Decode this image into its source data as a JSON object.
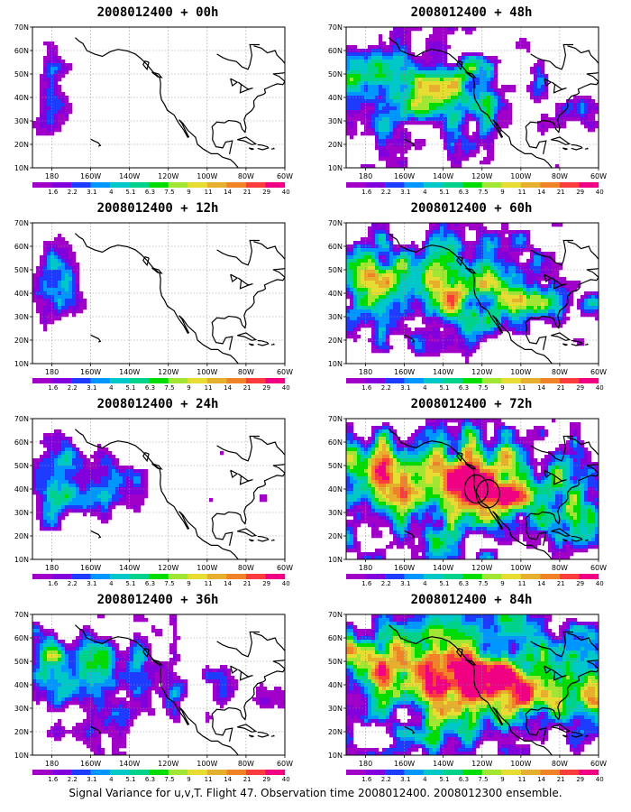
{
  "caption": "Signal Variance for u,v,T. Flight 47. Observation time 2008012400. 2008012300 ensemble.",
  "chart_data": [
    {
      "type": "heatmap",
      "title": "2008012400 + 00h",
      "lead_hours": 0,
      "intensity": 0.15,
      "rings": []
    },
    {
      "type": "heatmap",
      "title": "2008012400 + 12h",
      "lead_hours": 12,
      "intensity": 0.25,
      "rings": []
    },
    {
      "type": "heatmap",
      "title": "2008012400 + 24h",
      "lead_hours": 24,
      "intensity": 0.4,
      "rings": []
    },
    {
      "type": "heatmap",
      "title": "2008012400 + 36h",
      "lead_hours": 36,
      "intensity": 0.5,
      "rings": []
    },
    {
      "type": "heatmap",
      "title": "2008012400 + 48h",
      "lead_hours": 48,
      "intensity": 0.6,
      "rings": []
    },
    {
      "type": "heatmap",
      "title": "2008012400 + 60h",
      "lead_hours": 60,
      "intensity": 0.65,
      "rings": []
    },
    {
      "type": "heatmap",
      "title": "2008012400 + 72h",
      "lead_hours": 72,
      "intensity": 0.8,
      "rings": [
        {
          "lon": -123,
          "lat": 40,
          "radius_deg": 6
        },
        {
          "lon": -117,
          "lat": 38,
          "radius_deg": 6
        }
      ]
    },
    {
      "type": "heatmap",
      "title": "2008012400 + 84h",
      "lead_hours": 84,
      "intensity": 0.85,
      "rings": []
    }
  ],
  "axes": {
    "lon_ticks": [
      "180",
      "160W",
      "140W",
      "120W",
      "100W",
      "80W",
      "60W"
    ],
    "lon_values": [
      180,
      -160,
      -140,
      -120,
      -100,
      -80,
      -60
    ],
    "lat_ticks": [
      "10N",
      "20N",
      "30N",
      "40N",
      "50N",
      "60N",
      "70N"
    ],
    "lat_values": [
      10,
      20,
      30,
      40,
      50,
      60,
      70
    ],
    "xlim": [
      170,
      300
    ],
    "ylim": [
      10,
      70
    ],
    "grid": true
  },
  "colorbar": {
    "labels": [
      "1.6",
      "2.2",
      "3.1",
      "4",
      "5.1",
      "6.3",
      "7.5",
      "9",
      "11",
      "14",
      "21",
      "29",
      "40"
    ],
    "colors": [
      "#a000c8",
      "#8200dc",
      "#1e3cff",
      "#0096ff",
      "#00c8c8",
      "#00d28c",
      "#00dc00",
      "#a0e632",
      "#e6dc32",
      "#e6af2d",
      "#f08228",
      "#fa3c3c",
      "#f00082"
    ]
  }
}
